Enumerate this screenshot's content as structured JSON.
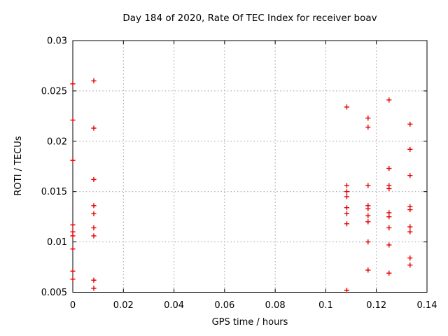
{
  "chart_data": {
    "type": "scatter",
    "title": "Day 184 of 2020, Rate Of TEC Index for receiver boav",
    "xlabel": "GPS time / hours",
    "ylabel": "ROTI / TECUs",
    "xlim": [
      0,
      0.14
    ],
    "ylim": [
      0.005,
      0.03
    ],
    "xticks": [
      0,
      0.02,
      0.04,
      0.06,
      0.08,
      0.1,
      0.12,
      0.14
    ],
    "xtick_labels": [
      "0",
      "0.02",
      "0.04",
      "0.06",
      "0.08",
      "0.1",
      "0.12",
      "0.14"
    ],
    "yticks": [
      0.005,
      0.01,
      0.015,
      0.02,
      0.025,
      0.03
    ],
    "ytick_labels": [
      "0.005",
      "0.01",
      "0.015",
      "0.02",
      "0.025",
      "0.03"
    ],
    "grid": true,
    "legend": "none",
    "marker": "plus",
    "marker_color": "#e60000",
    "grid_color": "#9a9a9a",
    "border_color": "#000000",
    "series": [
      {
        "name": "ROTI",
        "points": [
          [
            0,
            0.0257
          ],
          [
            0,
            0.0221
          ],
          [
            0,
            0.0181
          ],
          [
            0,
            0.0117
          ],
          [
            0,
            0.011
          ],
          [
            0,
            0.0106
          ],
          [
            0,
            0.0093
          ],
          [
            0,
            0.0071
          ],
          [
            0,
            0.0063
          ],
          [
            0.0083,
            0.026
          ],
          [
            0.0083,
            0.0213
          ],
          [
            0.0083,
            0.0162
          ],
          [
            0.0083,
            0.0136
          ],
          [
            0.0083,
            0.0128
          ],
          [
            0.0083,
            0.0114
          ],
          [
            0.0083,
            0.0106
          ],
          [
            0.0083,
            0.0062
          ],
          [
            0.0083,
            0.0054
          ],
          [
            0.1083,
            0.0234
          ],
          [
            0.1083,
            0.0156
          ],
          [
            0.1083,
            0.015
          ],
          [
            0.1083,
            0.0145
          ],
          [
            0.1083,
            0.0134
          ],
          [
            0.1083,
            0.0128
          ],
          [
            0.1083,
            0.0118
          ],
          [
            0.1083,
            0.0052
          ],
          [
            0.1167,
            0.0223
          ],
          [
            0.1167,
            0.0214
          ],
          [
            0.1167,
            0.0156
          ],
          [
            0.1167,
            0.0136
          ],
          [
            0.1167,
            0.0133
          ],
          [
            0.1167,
            0.0126
          ],
          [
            0.1167,
            0.012
          ],
          [
            0.1167,
            0.01
          ],
          [
            0.1167,
            0.0072
          ],
          [
            0.125,
            0.0241
          ],
          [
            0.125,
            0.0173
          ],
          [
            0.125,
            0.0156
          ],
          [
            0.125,
            0.0153
          ],
          [
            0.125,
            0.0129
          ],
          [
            0.125,
            0.0125
          ],
          [
            0.125,
            0.0114
          ],
          [
            0.125,
            0.0097
          ],
          [
            0.125,
            0.0069
          ],
          [
            0.1333,
            0.0217
          ],
          [
            0.1333,
            0.0192
          ],
          [
            0.1333,
            0.0166
          ],
          [
            0.1333,
            0.0135
          ],
          [
            0.1333,
            0.0132
          ],
          [
            0.1333,
            0.0115
          ],
          [
            0.1333,
            0.011
          ],
          [
            0.1333,
            0.0084
          ],
          [
            0.1333,
            0.0077
          ]
        ]
      }
    ]
  }
}
